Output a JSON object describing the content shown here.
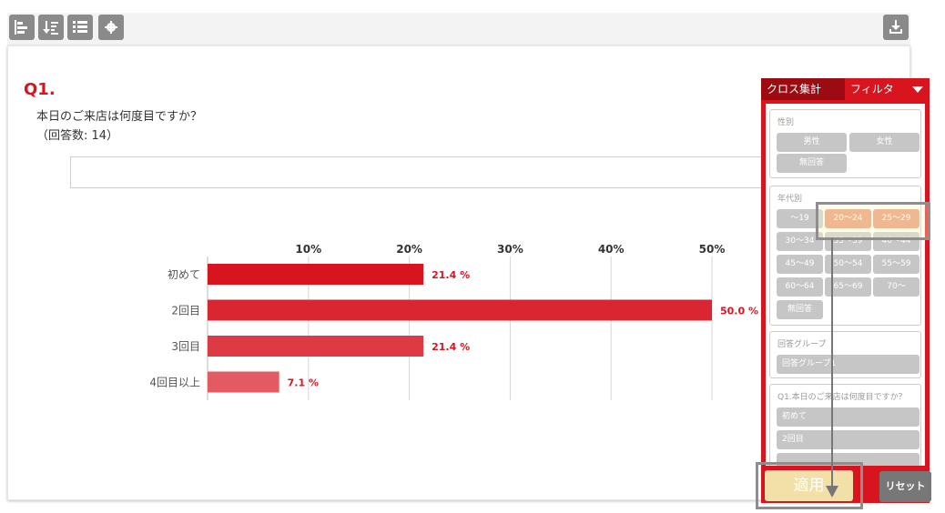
{
  "toolbar": {
    "icons": [
      "bar-chart-icon",
      "sort-desc-icon",
      "list-icon",
      "gear-icon"
    ],
    "download_icon": "download-icon"
  },
  "question": {
    "number": "Q1.",
    "text": "本日のご来店は何度目ですか？",
    "count_label": "（回答数: 14）"
  },
  "colors": {
    "accent": "#d8151f",
    "chip": "#c6c6c6",
    "chip_selected": "#e89574",
    "apply": "#f3e0a8"
  },
  "chart_data": {
    "type": "bar",
    "orientation": "horizontal",
    "categories": [
      "初めて",
      "2回目",
      "3回目",
      "4回目以上"
    ],
    "values": [
      21.4,
      50.0,
      21.4,
      7.1
    ],
    "value_labels": [
      "21.4 %",
      "50.0 %",
      "21.4 %",
      "7.1 %"
    ],
    "bar_colors": [
      "#d8151f",
      "#da2630",
      "#de3a43",
      "#e25a62"
    ],
    "ticks": [
      10,
      20,
      30,
      40,
      50
    ],
    "tick_labels": [
      "10%",
      "20%",
      "30%",
      "40%",
      "50%"
    ],
    "xlim": [
      0,
      50
    ],
    "grid": true
  },
  "side_panel": {
    "tab_cross": "クロス集計",
    "tab_filter": "フィルタ",
    "groups": [
      {
        "title": "性別",
        "items": [
          "男性",
          "女性",
          "無回答"
        ]
      },
      {
        "title": "年代別",
        "items": [
          "〜19",
          "20〜24",
          "25〜29",
          "30〜34",
          "35〜39",
          "40〜44",
          "45〜49",
          "50〜54",
          "55〜59",
          "60〜64",
          "65〜69",
          "70〜",
          "無回答"
        ],
        "selected": [
          "20〜24",
          "25〜29"
        ]
      },
      {
        "title": "回答グループ",
        "items": [
          "回答グループ1"
        ]
      },
      {
        "title": "Q1.本日のご来店は何度目ですか？",
        "items": [
          "初めて",
          "2回目"
        ]
      }
    ],
    "apply_label": "適用",
    "reset_label": "リセット"
  }
}
